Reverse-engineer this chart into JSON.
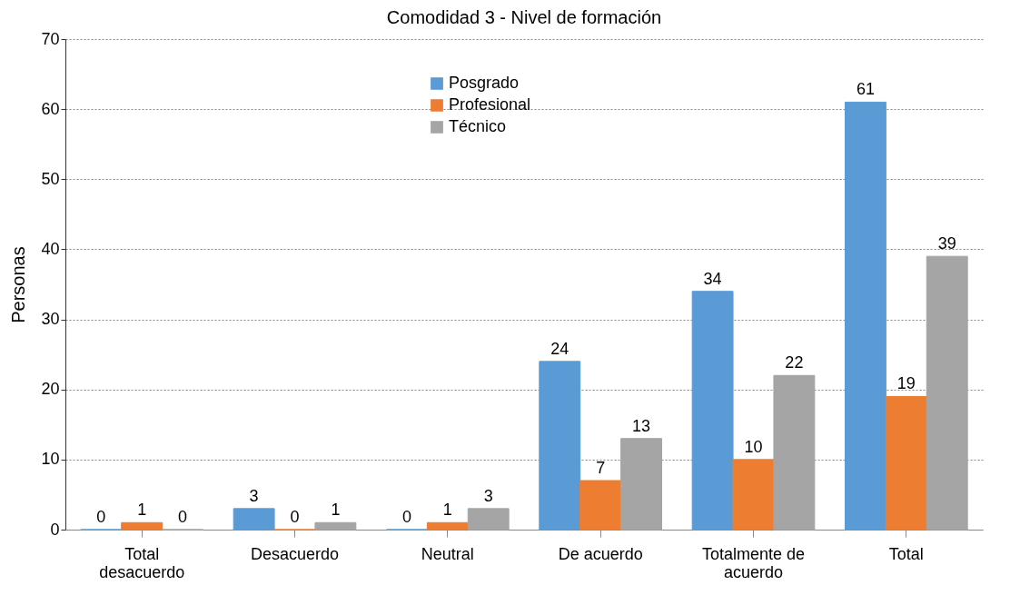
{
  "chart_data": {
    "type": "bar",
    "title": "Comodidad 3 - Nivel de formación",
    "ylabel": "Personas",
    "categories": [
      "Total desacuerdo",
      "Desacuerdo",
      "Neutral",
      "De acuerdo",
      "Totalmente de acuerdo",
      "Total"
    ],
    "series": [
      {
        "name": "Posgrado",
        "color": "#5b9bd5",
        "values": [
          0,
          3,
          0,
          24,
          34,
          61
        ]
      },
      {
        "name": "Profesional",
        "color": "#ed7d31",
        "values": [
          1,
          0,
          1,
          7,
          10,
          19
        ]
      },
      {
        "name": "Técnico",
        "color": "#a5a5a5",
        "values": [
          0,
          1,
          3,
          13,
          22,
          39
        ]
      }
    ],
    "ylim": [
      0,
      70
    ],
    "yticks": [
      0,
      10,
      20,
      30,
      40,
      50,
      60,
      70
    ],
    "grid": "y",
    "legend": "top",
    "data_labels": true
  }
}
